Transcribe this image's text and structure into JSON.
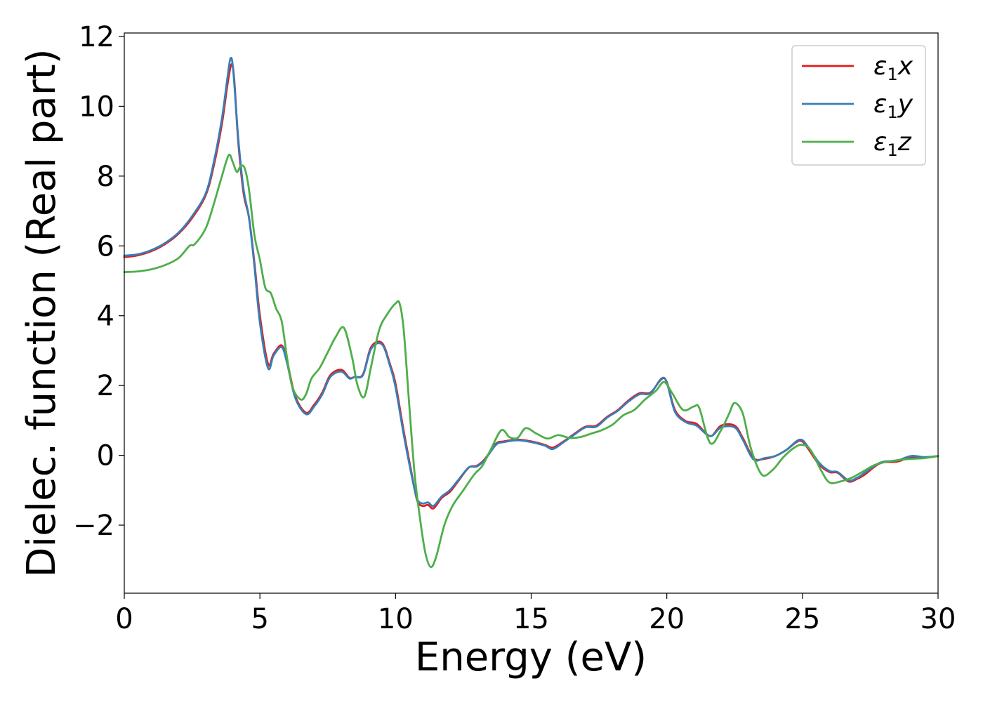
{
  "chart_data": {
    "type": "line",
    "title": "",
    "xlabel": "Energy (eV)",
    "ylabel": "Dielec. function (Real part)",
    "xlim": [
      0,
      30
    ],
    "ylim": [
      -3.95,
      12.1
    ],
    "xticks": [
      0,
      5,
      10,
      15,
      20,
      25,
      30
    ],
    "xtick_labels": [
      "0",
      "5",
      "10",
      "15",
      "20",
      "25",
      "30"
    ],
    "yticks": [
      -2,
      0,
      2,
      4,
      6,
      8,
      10,
      12
    ],
    "ytick_labels": [
      "−2",
      "0",
      "2",
      "4",
      "6",
      "8",
      "10",
      "12"
    ],
    "grid": false,
    "legend_position": "top-right",
    "series": [
      {
        "name": "ε₁x",
        "legend_symbol": "ε",
        "legend_sub": "1",
        "legend_var": "x",
        "color": "#e41a1c",
        "x": [
          0,
          0.5,
          1.0,
          1.5,
          2.0,
          2.5,
          3.0,
          3.3,
          3.6,
          3.8,
          3.95,
          4.05,
          4.2,
          4.4,
          4.6,
          4.8,
          5.0,
          5.3,
          5.5,
          5.8,
          6.0,
          6.3,
          6.7,
          7.0,
          7.3,
          7.6,
          8.0,
          8.3,
          8.5,
          8.8,
          9.1,
          9.5,
          9.8,
          10.0,
          10.3,
          10.6,
          10.8,
          11.0,
          11.2,
          11.4,
          11.7,
          12.0,
          12.3,
          12.7,
          13.0,
          13.3,
          13.7,
          14.0,
          14.5,
          15.0,
          15.5,
          15.8,
          16.2,
          16.6,
          17.0,
          17.4,
          17.8,
          18.2,
          18.6,
          19.0,
          19.4,
          19.8,
          20.0,
          20.3,
          20.7,
          21.1,
          21.6,
          22.0,
          22.5,
          22.8,
          23.2,
          23.6,
          24.0,
          24.4,
          24.9,
          25.2,
          25.6,
          26.0,
          26.3,
          26.7,
          27.0,
          27.3,
          27.7,
          28.0,
          28.5,
          29.0,
          29.5,
          30.0
        ],
        "values": [
          5.68,
          5.73,
          5.85,
          6.05,
          6.35,
          6.8,
          7.45,
          8.3,
          9.5,
          10.6,
          11.2,
          10.8,
          9.0,
          7.5,
          6.8,
          5.5,
          4.0,
          2.62,
          2.9,
          3.15,
          2.7,
          1.7,
          1.22,
          1.45,
          1.8,
          2.3,
          2.45,
          2.22,
          2.25,
          2.32,
          3.1,
          3.22,
          2.6,
          2.05,
          0.7,
          -0.55,
          -1.3,
          -1.45,
          -1.42,
          -1.52,
          -1.22,
          -1.05,
          -0.75,
          -0.35,
          -0.3,
          -0.1,
          0.33,
          0.4,
          0.45,
          0.4,
          0.3,
          0.22,
          0.4,
          0.62,
          0.82,
          0.85,
          1.1,
          1.3,
          1.58,
          1.78,
          1.8,
          2.18,
          2.1,
          1.3,
          0.98,
          0.9,
          0.55,
          0.85,
          0.85,
          0.5,
          -0.08,
          -0.1,
          -0.02,
          0.15,
          0.42,
          0.2,
          -0.25,
          -0.48,
          -0.5,
          -0.75,
          -0.68,
          -0.55,
          -0.3,
          -0.2,
          -0.18,
          -0.05,
          -0.07,
          -0.02
        ]
      },
      {
        "name": "ε₁y",
        "legend_symbol": "ε",
        "legend_sub": "1",
        "legend_var": "y",
        "color": "#377eb8",
        "x": [
          0,
          0.5,
          1.0,
          1.5,
          2.0,
          2.5,
          3.0,
          3.3,
          3.6,
          3.8,
          3.92,
          4.02,
          4.2,
          4.4,
          4.6,
          4.8,
          5.0,
          5.3,
          5.5,
          5.8,
          6.0,
          6.3,
          6.7,
          7.0,
          7.3,
          7.6,
          8.0,
          8.3,
          8.5,
          8.8,
          9.1,
          9.5,
          9.8,
          10.0,
          10.3,
          10.6,
          10.8,
          11.0,
          11.2,
          11.4,
          11.7,
          12.0,
          12.3,
          12.7,
          13.0,
          13.3,
          13.7,
          14.0,
          14.5,
          15.0,
          15.5,
          15.8,
          16.2,
          16.6,
          17.0,
          17.4,
          17.8,
          18.2,
          18.6,
          19.0,
          19.4,
          19.8,
          20.0,
          20.3,
          20.7,
          21.1,
          21.6,
          22.0,
          22.5,
          22.8,
          23.2,
          23.6,
          24.0,
          24.4,
          24.9,
          25.2,
          25.6,
          26.0,
          26.3,
          26.7,
          27.0,
          27.3,
          27.7,
          28.0,
          28.5,
          29.0,
          29.5,
          30.0
        ],
        "values": [
          5.72,
          5.76,
          5.88,
          6.08,
          6.38,
          6.85,
          7.5,
          8.4,
          9.65,
          10.8,
          11.38,
          11.0,
          9.1,
          7.6,
          6.8,
          5.4,
          3.8,
          2.5,
          2.85,
          3.1,
          2.65,
          1.65,
          1.18,
          1.4,
          1.75,
          2.25,
          2.4,
          2.2,
          2.25,
          2.3,
          3.05,
          3.18,
          2.55,
          1.95,
          0.6,
          -0.6,
          -1.25,
          -1.38,
          -1.35,
          -1.45,
          -1.18,
          -1.0,
          -0.72,
          -0.35,
          -0.32,
          -0.12,
          0.3,
          0.38,
          0.43,
          0.38,
          0.28,
          0.18,
          0.38,
          0.6,
          0.8,
          0.82,
          1.08,
          1.28,
          1.55,
          1.75,
          1.78,
          2.2,
          2.08,
          1.25,
          0.95,
          0.85,
          0.55,
          0.8,
          0.8,
          0.45,
          -0.12,
          -0.08,
          -0.02,
          0.15,
          0.45,
          0.25,
          -0.2,
          -0.45,
          -0.48,
          -0.72,
          -0.65,
          -0.5,
          -0.28,
          -0.18,
          -0.15,
          -0.02,
          -0.05,
          -0.02
        ]
      },
      {
        "name": "ε₁z",
        "legend_symbol": "ε",
        "legend_sub": "1",
        "legend_var": "z",
        "color": "#4daf4a",
        "x": [
          0,
          0.5,
          1.0,
          1.5,
          2.0,
          2.4,
          2.6,
          3.0,
          3.3,
          3.6,
          3.85,
          4.0,
          4.15,
          4.3,
          4.45,
          4.6,
          4.8,
          5.0,
          5.2,
          5.4,
          5.6,
          5.8,
          6.0,
          6.2,
          6.5,
          6.7,
          6.9,
          7.2,
          7.5,
          7.8,
          8.1,
          8.4,
          8.6,
          8.85,
          9.1,
          9.4,
          9.7,
          10.0,
          10.15,
          10.3,
          10.5,
          10.7,
          10.9,
          11.1,
          11.3,
          11.5,
          11.8,
          12.1,
          12.5,
          12.9,
          13.2,
          13.5,
          13.9,
          14.2,
          14.5,
          14.8,
          15.2,
          15.6,
          16.0,
          16.4,
          16.8,
          17.2,
          17.6,
          18.0,
          18.4,
          18.8,
          19.2,
          19.6,
          19.9,
          20.2,
          20.6,
          21.0,
          21.2,
          21.6,
          22.0,
          22.3,
          22.5,
          22.8,
          23.1,
          23.5,
          23.9,
          24.3,
          24.7,
          25.0,
          25.3,
          25.7,
          26.0,
          26.4,
          26.8,
          27.2,
          27.6,
          28.0,
          28.5,
          29.0,
          29.5,
          30.0
        ],
        "values": [
          5.25,
          5.27,
          5.33,
          5.45,
          5.65,
          6.0,
          6.05,
          6.5,
          7.2,
          8.0,
          8.6,
          8.4,
          8.12,
          8.3,
          8.2,
          7.6,
          6.3,
          5.6,
          4.8,
          4.65,
          4.2,
          3.85,
          2.8,
          1.95,
          1.6,
          1.75,
          2.2,
          2.5,
          2.95,
          3.4,
          3.65,
          2.8,
          2.0,
          1.68,
          2.55,
          3.6,
          4.05,
          4.35,
          4.35,
          3.6,
          1.5,
          -0.5,
          -1.8,
          -2.8,
          -3.2,
          -2.9,
          -2.0,
          -1.45,
          -1.0,
          -0.55,
          -0.3,
          0.15,
          0.72,
          0.52,
          0.5,
          0.78,
          0.62,
          0.48,
          0.58,
          0.5,
          0.52,
          0.62,
          0.72,
          0.88,
          1.15,
          1.3,
          1.6,
          1.85,
          2.1,
          1.78,
          1.3,
          1.4,
          1.35,
          0.35,
          0.72,
          1.2,
          1.5,
          1.2,
          0.2,
          -0.55,
          -0.42,
          -0.05,
          0.22,
          0.3,
          0.15,
          -0.45,
          -0.78,
          -0.75,
          -0.65,
          -0.48,
          -0.3,
          -0.2,
          -0.14,
          -0.1,
          -0.08,
          -0.02
        ]
      }
    ]
  }
}
